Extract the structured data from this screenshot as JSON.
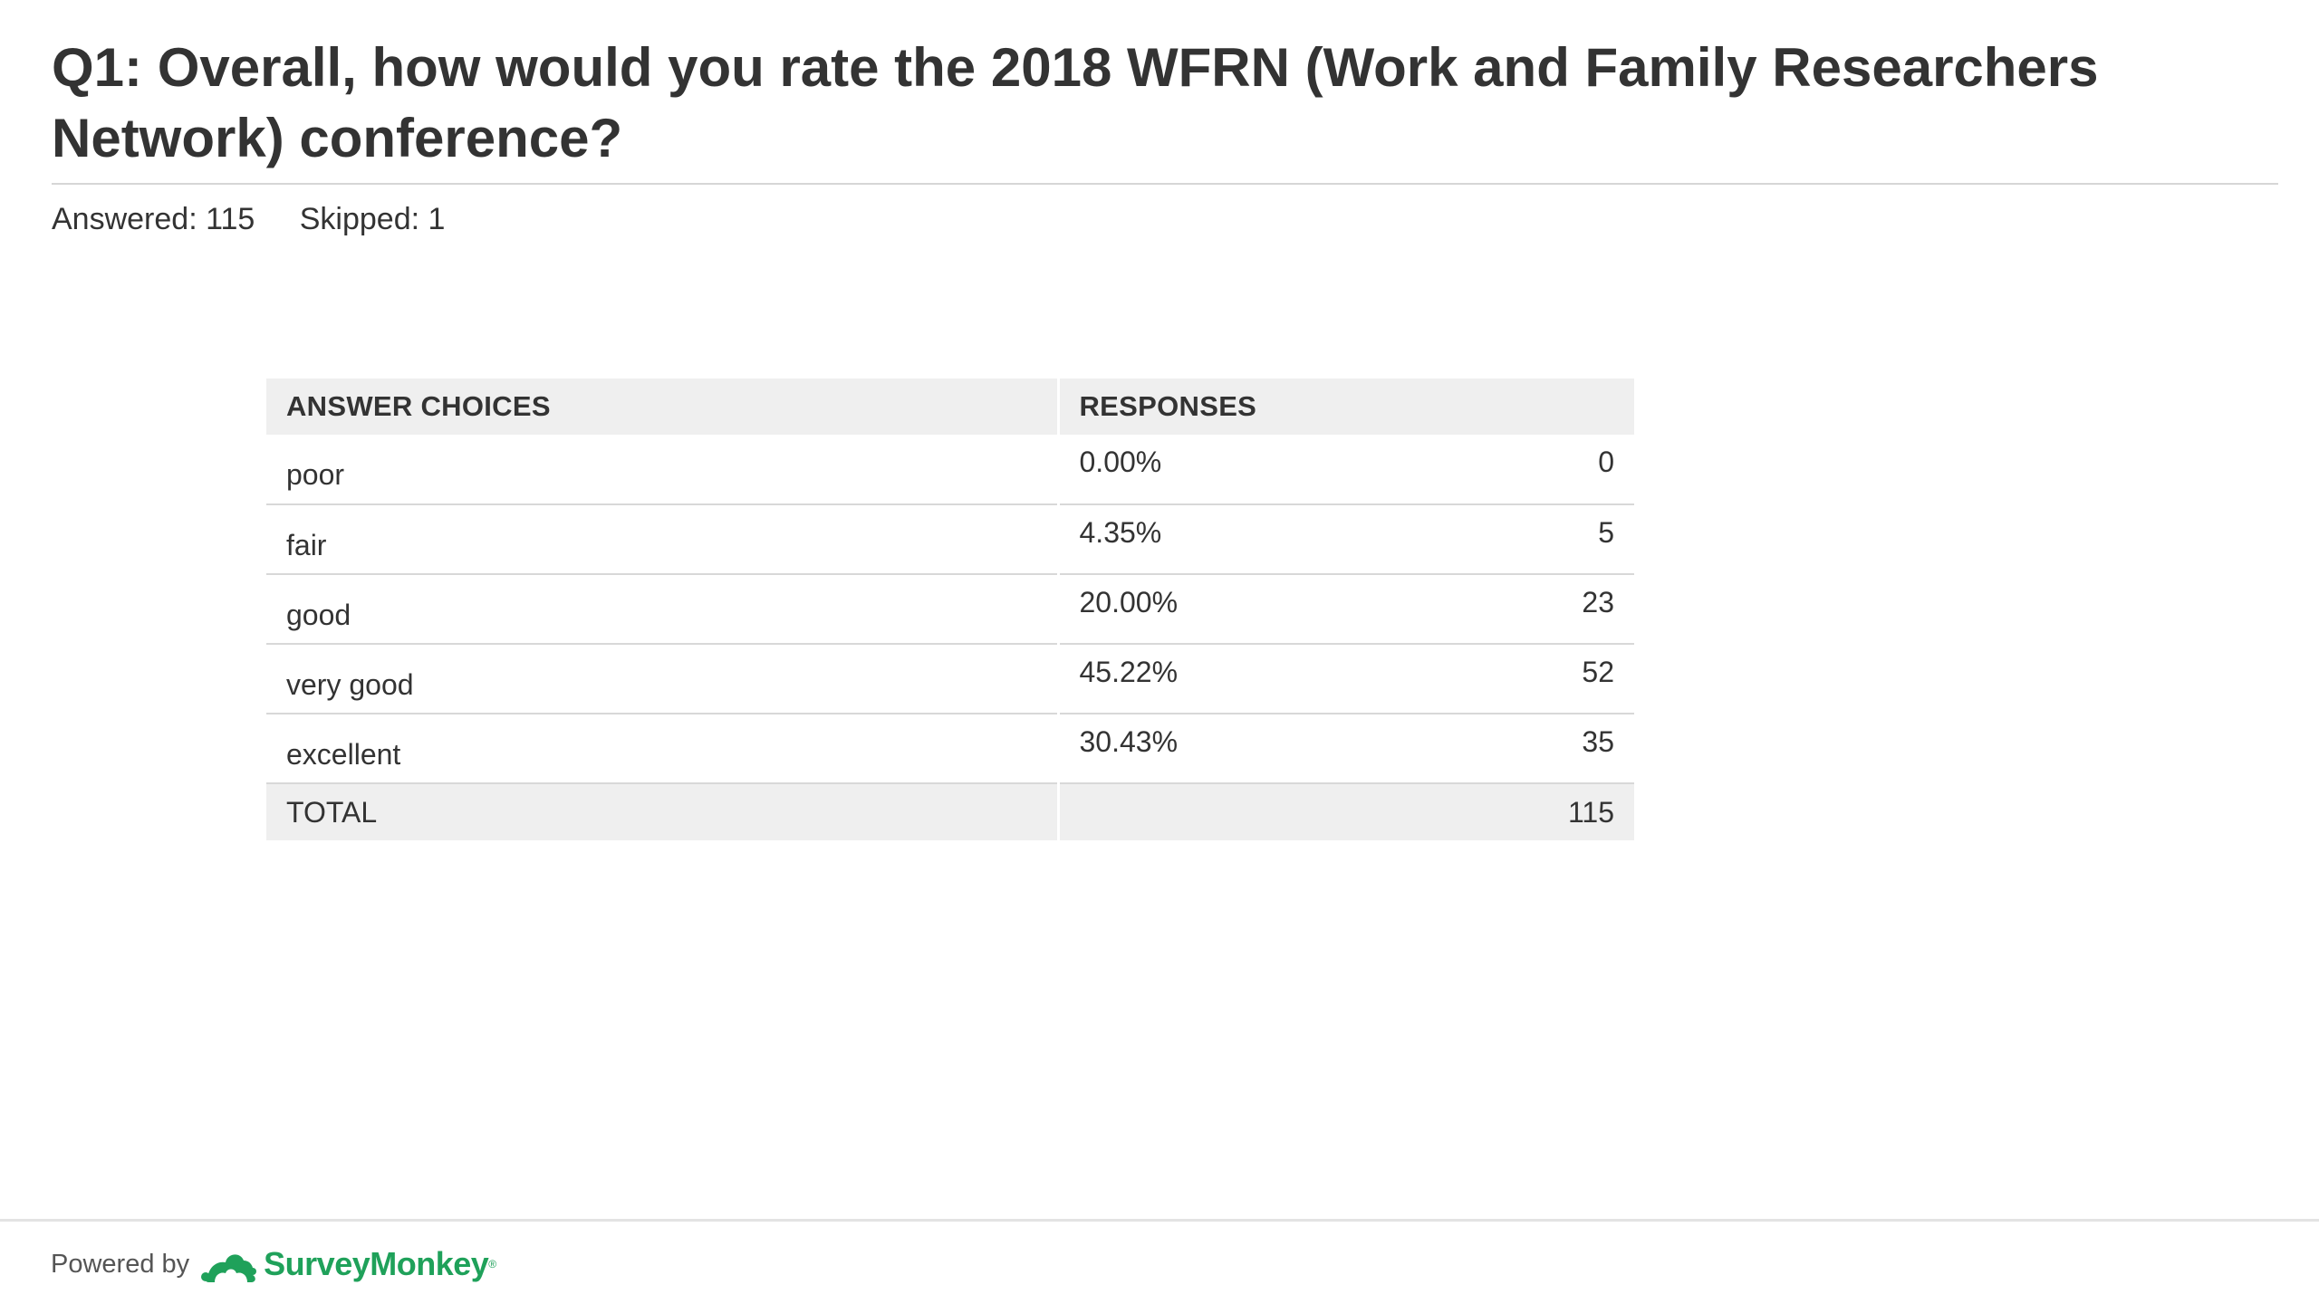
{
  "question": {
    "title": "Q1: Overall, how would you rate the 2018 WFRN (Work and Family Researchers Network) conference?",
    "answered_label": "Answered: 115",
    "skipped_label": "Skipped: 1"
  },
  "table": {
    "headers": {
      "choices": "ANSWER CHOICES",
      "responses": "RESPONSES"
    },
    "rows": [
      {
        "choice": "poor",
        "percent": "0.00%",
        "count": "0"
      },
      {
        "choice": "fair",
        "percent": "4.35%",
        "count": "5"
      },
      {
        "choice": "good",
        "percent": "20.00%",
        "count": "23"
      },
      {
        "choice": "very good",
        "percent": "45.22%",
        "count": "52"
      },
      {
        "choice": "excellent",
        "percent": "30.43%",
        "count": "35"
      }
    ],
    "total": {
      "label": "TOTAL",
      "count": "115"
    }
  },
  "footer": {
    "powered_by": "Powered by",
    "brand": "SurveyMonkey",
    "brand_mark": "®",
    "brand_color": "#1fa15a",
    "logo_icon": "surveymonkey-logo-icon"
  }
}
